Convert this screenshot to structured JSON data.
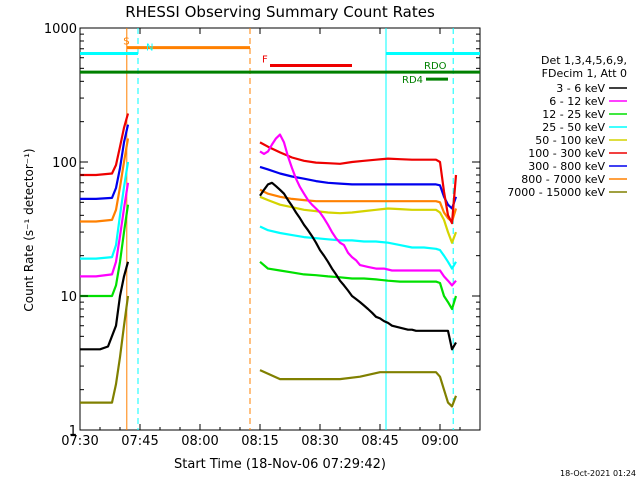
{
  "chart_data": {
    "type": "line",
    "title": "RHESSI Observing Summary Count Rates",
    "xlabel": "Start Time (18-Nov-06 07:29:42)",
    "ylabel": "Count Rate (s⁻¹ detector⁻¹)",
    "footer": "18-Oct-2021 01:24",
    "x_unit": "minutes after 07:30",
    "xlim": [
      0,
      100
    ],
    "ylim": [
      1,
      1000
    ],
    "yscale": "log",
    "x_ticks": [
      {
        "label": "07:30",
        "value": 0
      },
      {
        "label": "07:45",
        "value": 15
      },
      {
        "label": "08:00",
        "value": 30
      },
      {
        "label": "08:15",
        "value": 45
      },
      {
        "label": "08:30",
        "value": 60
      },
      {
        "label": "08:45",
        "value": 75
      },
      {
        "label": "09:00",
        "value": 90
      }
    ],
    "y_ticks": [
      {
        "label": "1",
        "value": 1
      },
      {
        "label": "10",
        "value": 10
      },
      {
        "label": "100",
        "value": 100
      },
      {
        "label": "1000",
        "value": 1000
      }
    ],
    "legend_header": [
      "Det 1,3,4,5,6,9,",
      "FDecim 1, Att 0"
    ],
    "legend_position": "right",
    "series": [
      {
        "name": "3 - 6 keV",
        "color": "#000000",
        "segments": [
          {
            "x": [
              0,
              5,
              7,
              9,
              10,
              11,
              12
            ],
            "y": [
              4,
              4,
              4.2,
              6,
              10,
              14,
              18
            ]
          },
          {
            "x": [
              45,
              46,
              47,
              48,
              49,
              50,
              51,
              52,
              53,
              54,
              55,
              56,
              57,
              58,
              59,
              60,
              61,
              62,
              63,
              64,
              65,
              66,
              67,
              68,
              69,
              70,
              71,
              72,
              73,
              74,
              75,
              76,
              77,
              78,
              79,
              80,
              81,
              82,
              83,
              84,
              85,
              86,
              87,
              88,
              89,
              90,
              91,
              92,
              93,
              94
            ],
            "y": [
              56,
              62,
              68,
              70,
              66,
              62,
              58,
              52,
              47,
              42,
              38,
              34,
              31,
              28,
              25,
              22,
              20,
              18,
              16,
              14.5,
              13,
              12,
              11,
              10,
              9.5,
              9,
              8.5,
              8,
              7.5,
              7,
              6.8,
              6.5,
              6.3,
              6,
              5.9,
              5.8,
              5.7,
              5.6,
              5.6,
              5.5,
              5.5,
              5.5,
              5.5,
              5.5,
              5.5,
              5.5,
              5.5,
              5.5,
              4,
              4.5
            ]
          }
        ]
      },
      {
        "name": "6 - 12 keV",
        "color": "#ff00ff",
        "segments": [
          {
            "x": [
              0,
              4,
              8,
              9,
              10,
              11,
              12
            ],
            "y": [
              14,
              14,
              14.5,
              18,
              28,
              45,
              70
            ]
          },
          {
            "x": [
              45,
              46,
              47,
              48,
              49,
              50,
              51,
              52,
              53,
              54,
              55,
              56,
              57,
              58,
              59,
              60,
              61,
              62,
              63,
              64,
              65,
              66,
              67,
              68,
              69,
              70,
              72,
              74,
              76,
              78,
              80,
              82,
              84,
              86,
              88,
              90,
              91,
              92,
              93,
              94
            ],
            "y": [
              120,
              115,
              120,
              135,
              150,
              160,
              140,
              110,
              90,
              75,
              65,
              58,
              52,
              48,
              45,
              42,
              38,
              34,
              30,
              27,
              25,
              24,
              21,
              19.5,
              18.5,
              17,
              16.5,
              16,
              16,
              15.5,
              15.5,
              15.5,
              15.5,
              15.5,
              15.5,
              15.5,
              14,
              13,
              12,
              13
            ]
          }
        ]
      },
      {
        "name": "12 - 25 keV",
        "color": "#00e000",
        "segments": [
          {
            "x": [
              0,
              4,
              8,
              9,
              10,
              11,
              12
            ],
            "y": [
              10,
              10,
              10,
              12,
              18,
              30,
              48
            ]
          },
          {
            "x": [
              45,
              47,
              50,
              53,
              56,
              59,
              62,
              65,
              68,
              71,
              74,
              77,
              80,
              83,
              86,
              89,
              90,
              91,
              92,
              93,
              94
            ],
            "y": [
              18,
              16,
              15.5,
              15,
              14.5,
              14.3,
              14,
              13.8,
              13.5,
              13.5,
              13.3,
              13,
              12.8,
              12.8,
              12.8,
              12.8,
              12.5,
              10,
              9,
              8,
              10
            ]
          }
        ]
      },
      {
        "name": "25 - 50 keV",
        "color": "#00ffff",
        "segments": [
          {
            "x": [
              0,
              4,
              8,
              9,
              10,
              11,
              12
            ],
            "y": [
              19,
              19,
              19.5,
              24,
              40,
              65,
              100
            ]
          },
          {
            "x": [
              45,
              47,
              50,
              53,
              56,
              59,
              62,
              65,
              68,
              71,
              74,
              77,
              80,
              83,
              86,
              89,
              90,
              91,
              92,
              93,
              94
            ],
            "y": [
              33,
              31,
              29.5,
              28.5,
              27.5,
              27,
              26.5,
              26,
              26,
              25.5,
              25.5,
              25,
              24,
              23,
              23,
              22.5,
              22,
              20,
              18,
              16,
              18
            ]
          }
        ]
      },
      {
        "name": "50 - 100 keV",
        "color": "#d4d400",
        "segments": [
          {
            "x": [
              45,
              47,
              50,
              53,
              56,
              59,
              62,
              65,
              68,
              71,
              74,
              77,
              80,
              83,
              86,
              89,
              90,
              91,
              92,
              93,
              94
            ],
            "y": [
              55,
              52,
              48,
              46,
              44,
              43,
              42,
              41.5,
              42,
              43,
              44,
              45,
              44.5,
              44,
              44,
              44,
              42,
              37,
              30,
              25,
              30
            ]
          }
        ]
      },
      {
        "name": "100 - 300 keV",
        "color": "#ee0000",
        "segments": [
          {
            "x": [
              0,
              4,
              8,
              9,
              10,
              11,
              12
            ],
            "y": [
              80,
              80,
              82,
              95,
              130,
              180,
              230
            ]
          },
          {
            "x": [
              45,
              47,
              50,
              53,
              56,
              59,
              62,
              65,
              68,
              71,
              74,
              77,
              80,
              83,
              86,
              89,
              90,
              91,
              92,
              93,
              94
            ],
            "y": [
              140,
              130,
              118,
              108,
              102,
              99,
              98,
              97,
              100,
              102,
              104,
              106,
              105,
              104,
              104,
              104,
              100,
              60,
              40,
              35,
              80
            ]
          }
        ]
      },
      {
        "name": "300 - 800 keV",
        "color": "#0000ee",
        "segments": [
          {
            "x": [
              0,
              4,
              8,
              9,
              10,
              11,
              12
            ],
            "y": [
              53,
              53,
              54,
              64,
              90,
              140,
              190
            ]
          },
          {
            "x": [
              45,
              47,
              50,
              53,
              56,
              59,
              62,
              65,
              68,
              71,
              74,
              77,
              80,
              83,
              86,
              89,
              90,
              91,
              92,
              93,
              94
            ],
            "y": [
              92,
              88,
              82,
              78,
              75,
              72,
              70,
              69,
              68,
              68,
              68,
              68,
              68,
              68,
              68,
              68,
              67,
              55,
              48,
              45,
              55
            ]
          }
        ]
      },
      {
        "name": "800 - 7000 keV",
        "color": "#ff8000",
        "segments": [
          {
            "x": [
              0,
              4,
              8,
              9,
              10,
              11,
              12
            ],
            "y": [
              36,
              36,
              37,
              44,
              65,
              100,
              150
            ]
          },
          {
            "x": [
              45,
              47,
              50,
              53,
              56,
              59,
              62,
              65,
              68,
              71,
              74,
              77,
              80,
              83,
              86,
              89,
              90,
              91,
              92,
              93,
              94
            ],
            "y": [
              62,
              58,
              55,
              53,
              52,
              51,
              51,
              51,
              51,
              51,
              51,
              51,
              51,
              51,
              51,
              51,
              50,
              42,
              38,
              36,
              45
            ]
          }
        ]
      },
      {
        "name": "7000 - 15000 keV",
        "color": "#808000",
        "segments": [
          {
            "x": [
              0,
              4,
              8,
              9,
              10,
              11,
              12
            ],
            "y": [
              1.6,
              1.6,
              1.6,
              2.2,
              3.5,
              6,
              10
            ]
          },
          {
            "x": [
              45,
              50,
              55,
              60,
              65,
              70,
              75,
              80,
              85,
              89,
              90,
              91,
              92,
              93,
              94
            ],
            "y": [
              2.8,
              2.4,
              2.4,
              2.4,
              2.4,
              2.5,
              2.7,
              2.7,
              2.7,
              2.7,
              2.5,
              2,
              1.6,
              1.5,
              1.8
            ]
          }
        ]
      }
    ],
    "vertical_lines": [
      {
        "x": 11.7,
        "color": "#ff8000",
        "style": "solid"
      },
      {
        "x": 14.5,
        "color": "#00ffff",
        "style": "dashed"
      },
      {
        "x": 42.5,
        "color": "#ff8000",
        "style": "dashed"
      },
      {
        "x": 76.5,
        "color": "#00ffff",
        "style": "solid"
      },
      {
        "x": 93.3,
        "color": "#00ffff",
        "style": "dashed"
      }
    ],
    "flag_bars": [
      {
        "label": "S",
        "color": "#ff8000",
        "x_start": 11.7,
        "x_end": 42.5,
        "y": 713,
        "label_x": 10.8
      },
      {
        "label": "N",
        "color": "#00ffff",
        "x_start": 0,
        "x_end": 14.5,
        "y": 645,
        "label_x": 16.5
      },
      {
        "label": "N",
        "color": "#00ffff",
        "x_start": 76.5,
        "x_end": 100,
        "y": 645,
        "label_x": null
      },
      {
        "label": "F",
        "color": "#ee0000",
        "x_start": 47.5,
        "x_end": 68,
        "y": 525,
        "label_x": 45.5
      },
      {
        "label": "RDO",
        "color": "#008000",
        "x_start": 0,
        "x_end": 100,
        "y": 468,
        "label_x": 86
      },
      {
        "label": "RD4",
        "color": "#008000",
        "x_start": 86.5,
        "x_end": 92,
        "y": 415,
        "label_x": 80.5
      }
    ]
  }
}
